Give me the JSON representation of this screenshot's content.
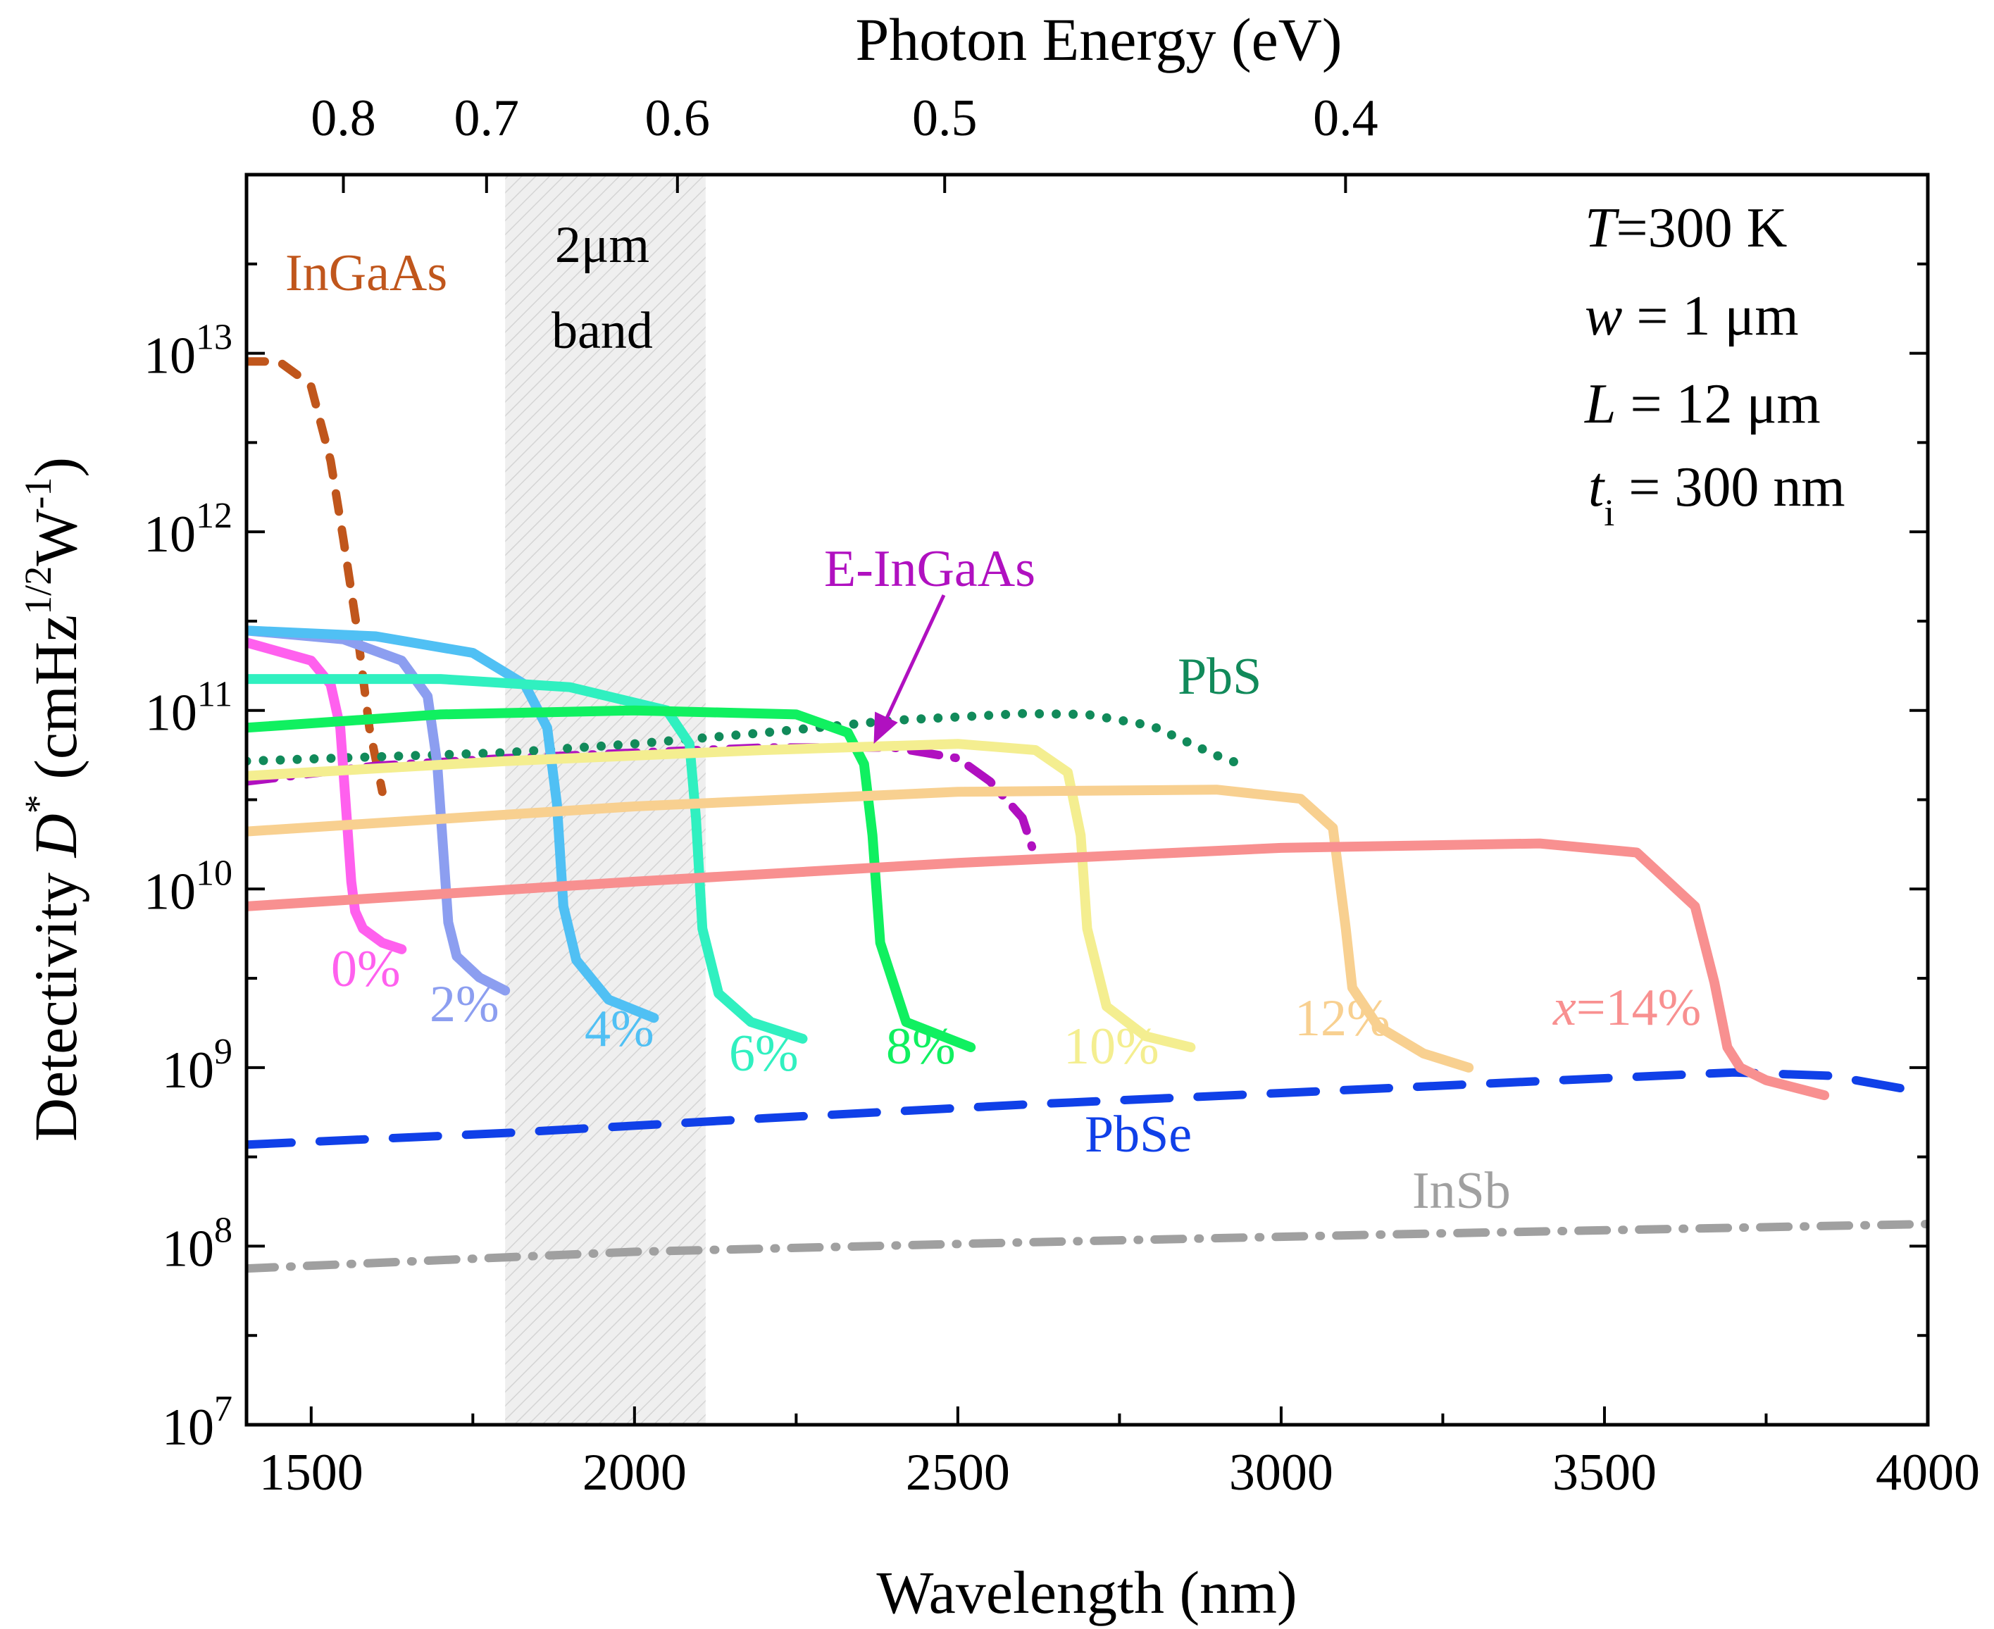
{
  "chart_data": {
    "type": "line",
    "title": "",
    "xlabel": "Wavelength (nm)",
    "x2label": "Photon Energy (eV)",
    "ylabel": "Detectivity D* (cmHz^1/2 W^-1)",
    "ylabel_parts": {
      "prefix": "Detectivity ",
      "symbol": "D",
      "sup1": "*",
      "unit_open": " (cmHz",
      "sup2": "1/2",
      "unit_mid": "W",
      "sup3": "-1",
      "unit_close": ")"
    },
    "xlim": [
      1400,
      4000
    ],
    "ylim_log10": [
      7,
      14
    ],
    "x_ticks": [
      "1500",
      "2000",
      "2500",
      "3000",
      "3500",
      "4000"
    ],
    "x_tick_values": [
      1500,
      2000,
      2500,
      3000,
      3500,
      4000
    ],
    "y_ticks": [
      {
        "base": "10",
        "exp": "7",
        "value": 7
      },
      {
        "base": "10",
        "exp": "8",
        "value": 8
      },
      {
        "base": "10",
        "exp": "9",
        "value": 9
      },
      {
        "base": "10",
        "exp": "10",
        "value": 10
      },
      {
        "base": "10",
        "exp": "11",
        "value": 11
      },
      {
        "base": "10",
        "exp": "12",
        "value": 12
      },
      {
        "base": "10",
        "exp": "13",
        "value": 13
      }
    ],
    "top_ticks": [
      {
        "label": "0.8",
        "energy": 0.8
      },
      {
        "label": "0.7",
        "energy": 0.7
      },
      {
        "label": "0.6",
        "energy": 0.6
      },
      {
        "label": "0.5",
        "energy": 0.5
      },
      {
        "label": "0.4",
        "energy": 0.4
      }
    ],
    "band": {
      "x_range": [
        1800,
        2110
      ],
      "label_line1": "2μm",
      "label_line2": "band"
    },
    "parameters": [
      {
        "symbol": "T",
        "sub": "",
        "text": "=300 K"
      },
      {
        "symbol": "w",
        "sub": "",
        "text": " = 1 μm"
      },
      {
        "symbol": "L",
        "sub": "",
        "text": " = 12 μm"
      },
      {
        "symbol": "t",
        "sub": "i",
        "text": " = 300 nm"
      }
    ],
    "series": [
      {
        "name": "InGaAs",
        "label": "InGaAs",
        "color": "#c0561c",
        "dash": "dash",
        "x": [
          1400,
          1450,
          1480,
          1500,
          1530,
          1550,
          1570,
          1590,
          1610
        ],
        "y": [
          9000000000000.0,
          9000000000000.0,
          7500000000000.0,
          6500000000000.0,
          2500000000000.0,
          900000000000.0,
          300000000000.0,
          80000000000.0,
          35000000000.0
        ]
      },
      {
        "name": "E-InGaAs",
        "label": "E-InGaAs",
        "color": "#b010c0",
        "dash": "dashdot",
        "x": [
          1400,
          1600,
          1800,
          2000,
          2200,
          2400,
          2500,
          2550,
          2600,
          2620
        ],
        "y": [
          40000000000.0,
          49000000000.0,
          54000000000.0,
          58000000000.0,
          62000000000.0,
          62000000000.0,
          54000000000.0,
          40000000000.0,
          25000000000.0,
          15000000000.0
        ]
      },
      {
        "name": "PbS",
        "label": "PbS",
        "color": "#118a5a",
        "dash": "dot",
        "x": [
          1400,
          1600,
          1800,
          2000,
          2200,
          2400,
          2600,
          2700,
          2800,
          2900,
          2950
        ],
        "y": [
          52000000000.0,
          55000000000.0,
          58000000000.0,
          65000000000.0,
          75000000000.0,
          88000000000.0,
          96000000000.0,
          95000000000.0,
          82000000000.0,
          56000000000.0,
          48000000000.0
        ]
      },
      {
        "name": "PbSe",
        "label": "PbSe",
        "color": "#1040e8",
        "dash": "longdash",
        "x": [
          1400,
          1800,
          2200,
          2600,
          3000,
          3400,
          3700,
          3850,
          4000
        ],
        "y": [
          370000000.0,
          430000000.0,
          520000000.0,
          620000000.0,
          720000000.0,
          840000000.0,
          940000000.0,
          900000000.0,
          720000000.0
        ]
      },
      {
        "name": "InSb",
        "label": "InSb",
        "color": "#a0a0a0",
        "dash": "dashdot",
        "x": [
          1400,
          2000,
          2600,
          3200,
          4000
        ],
        "y": [
          75000000.0,
          93000000.0,
          105000000.0,
          117000000.0,
          133000000.0
        ]
      },
      {
        "name": "x=0%",
        "label": "0%",
        "color": "#ff60ee",
        "dash": "solid",
        "x": [
          1400,
          1500,
          1530,
          1545,
          1555,
          1562,
          1568,
          1580,
          1610,
          1640
        ],
        "y": [
          240000000000.0,
          190000000000.0,
          140000000000.0,
          80000000000.0,
          25000000000.0,
          11000000000.0,
          7500000000.0,
          6000000000.0,
          5000000000.0,
          4600000000.0
        ]
      },
      {
        "name": "x=2%",
        "label": "2%",
        "color": "#8c9ef0",
        "dash": "solid",
        "x": [
          1400,
          1550,
          1640,
          1680,
          1695,
          1705,
          1712,
          1725,
          1760,
          1800
        ],
        "y": [
          280000000000.0,
          250000000000.0,
          190000000000.0,
          120000000000.0,
          50000000000.0,
          15000000000.0,
          6500000000.0,
          4200000000.0,
          3200000000.0,
          2700000000.0
        ]
      },
      {
        "name": "x=4%",
        "label": "4%",
        "color": "#50c0f4",
        "dash": "solid",
        "x": [
          1400,
          1600,
          1750,
          1830,
          1865,
          1880,
          1890,
          1910,
          1960,
          2030
        ],
        "y": [
          280000000000.0,
          260000000000.0,
          210000000000.0,
          140000000000.0,
          80000000000.0,
          30000000000.0,
          8000000000.0,
          4000000000.0,
          2400000000.0,
          1900000000.0
        ]
      },
      {
        "name": "x=6%",
        "label": "6%",
        "color": "#30f0c0",
        "dash": "solid",
        "x": [
          1400,
          1700,
          1900,
          2050,
          2085,
          2095,
          2105,
          2130,
          2180,
          2260
        ],
        "y": [
          150000000000.0,
          150000000000.0,
          135000000000.0,
          100000000000.0,
          65000000000.0,
          25000000000.0,
          6000000000.0,
          2600000000.0,
          1800000000.0,
          1450000000.0
        ]
      },
      {
        "name": "x=8%",
        "label": "8%",
        "color": "#10f060",
        "dash": "solid",
        "x": [
          1400,
          1700,
          2000,
          2250,
          2330,
          2355,
          2368,
          2380,
          2420,
          2520
        ],
        "y": [
          80000000000.0,
          95000000000.0,
          100000000000.0,
          95000000000.0,
          75000000000.0,
          50000000000.0,
          20000000000.0,
          5000000000.0,
          1800000000.0,
          1300000000.0
        ]
      },
      {
        "name": "x=10%",
        "label": "10%",
        "color": "#f4ee90",
        "dash": "solid",
        "x": [
          1400,
          1800,
          2200,
          2500,
          2620,
          2670,
          2690,
          2700,
          2730,
          2790,
          2860
        ],
        "y": [
          43000000000.0,
          52000000000.0,
          60000000000.0,
          65000000000.0,
          60000000000.0,
          45000000000.0,
          20000000000.0,
          6000000000.0,
          2200000000.0,
          1500000000.0,
          1300000000.0
        ]
      },
      {
        "name": "x=12%",
        "label": "12%",
        "color": "#f8d090",
        "dash": "solid",
        "x": [
          1400,
          2000,
          2500,
          2900,
          3030,
          3080,
          3100,
          3110,
          3150,
          3220,
          3290
        ],
        "y": [
          21000000000.0,
          29000000000.0,
          35000000000.0,
          36000000000.0,
          32000000000.0,
          22000000000.0,
          6000000000.0,
          2800000000.0,
          1700000000.0,
          1200000000.0,
          1000000000.0
        ]
      },
      {
        "name": "x=14%",
        "label": "x=14%",
        "label_italic": "x",
        "label_rest": "=14%",
        "color": "#f89090",
        "dash": "solid",
        "x": [
          1400,
          2000,
          2500,
          3000,
          3400,
          3550,
          3640,
          3670,
          3690,
          3710,
          3750,
          3840
        ],
        "y": [
          8000000000.0,
          11000000000.0,
          14000000000.0,
          17000000000.0,
          18000000000.0,
          16000000000.0,
          8000000000.0,
          3000000000.0,
          1300000000.0,
          1000000000.0,
          850000000.0,
          700000000.0
        ]
      }
    ],
    "annotations": [
      {
        "text": "E-InGaAs",
        "arrow_to": [
          2370,
          65000000000.0
        ]
      }
    ]
  }
}
